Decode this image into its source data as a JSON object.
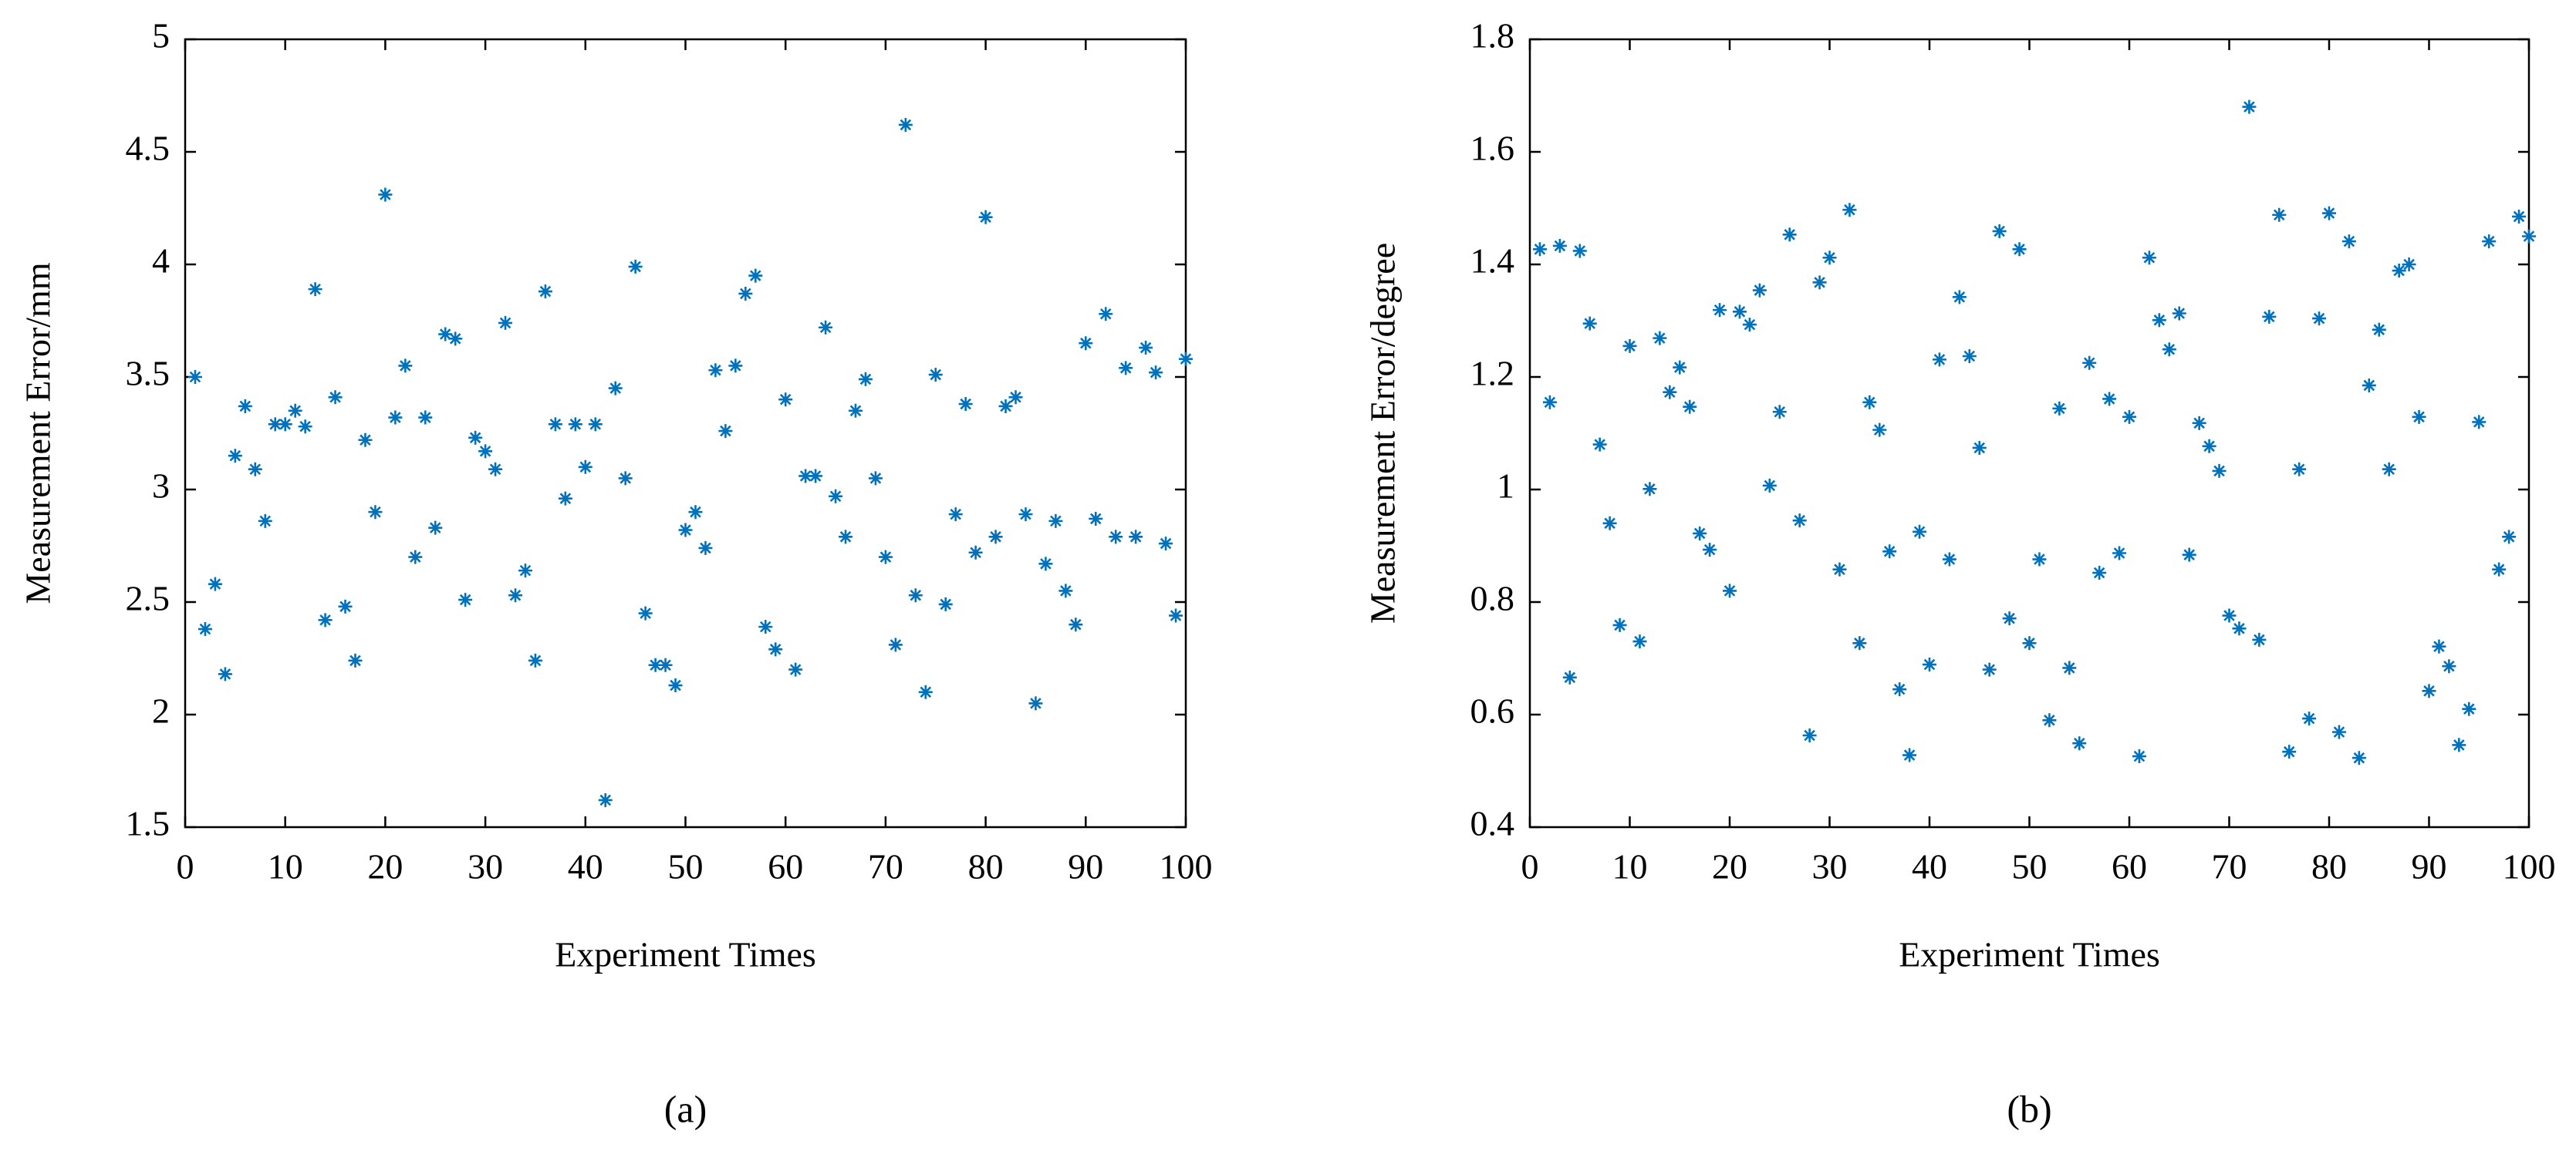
{
  "chart_data": [
    {
      "type": "scatter",
      "caption": "(a)",
      "x_label": "Experiment Times",
      "y_label": "Measurement Error/mm",
      "color": "#0072bd",
      "xlim": [
        0,
        100
      ],
      "xticks": [
        0,
        10,
        20,
        30,
        40,
        50,
        60,
        70,
        80,
        90,
        100
      ],
      "ylim": [
        1.5,
        5
      ],
      "yticks": [
        1.5,
        2,
        2.5,
        3,
        3.5,
        4,
        4.5,
        5
      ],
      "x": [
        1,
        2,
        3,
        4,
        5,
        6,
        7,
        8,
        9,
        10,
        11,
        12,
        13,
        14,
        15,
        16,
        17,
        18,
        19,
        20,
        21,
        22,
        23,
        24,
        25,
        26,
        27,
        28,
        29,
        30,
        31,
        32,
        33,
        34,
        35,
        36,
        37,
        38,
        39,
        40,
        41,
        42,
        43,
        44,
        45,
        46,
        47,
        48,
        49,
        50,
        51,
        52,
        53,
        54,
        55,
        56,
        57,
        58,
        59,
        60,
        61,
        62,
        63,
        64,
        65,
        66,
        67,
        68,
        69,
        70,
        71,
        72,
        73,
        74,
        75,
        76,
        77,
        78,
        79,
        80,
        81,
        82,
        83,
        84,
        85,
        86,
        87,
        88,
        89,
        90,
        91,
        92,
        93,
        94,
        95,
        96,
        97,
        98,
        99,
        100
      ],
      "values": [
        3.5,
        2.38,
        2.58,
        2.18,
        3.15,
        3.37,
        3.09,
        2.86,
        3.29,
        3.29,
        3.35,
        3.28,
        3.89,
        2.42,
        3.41,
        2.48,
        2.24,
        3.22,
        2.9,
        4.31,
        3.32,
        3.55,
        2.7,
        3.32,
        2.83,
        3.69,
        3.67,
        2.51,
        3.23,
        3.17,
        3.09,
        3.74,
        2.53,
        2.64,
        2.24,
        3.88,
        3.29,
        2.96,
        3.29,
        3.1,
        3.29,
        1.62,
        3.45,
        3.05,
        3.99,
        2.45,
        2.22,
        2.22,
        2.13,
        2.82,
        2.9,
        2.74,
        3.53,
        3.26,
        3.55,
        3.87,
        3.95,
        2.39,
        2.29,
        3.4,
        2.2,
        3.06,
        3.06,
        3.72,
        2.97,
        2.79,
        3.35,
        3.49,
        3.05,
        2.7,
        2.31,
        4.62,
        2.53,
        2.1,
        3.51,
        2.49,
        2.89,
        3.38,
        2.72,
        4.21,
        2.79,
        3.37,
        3.41,
        2.89,
        2.05,
        2.67,
        2.86,
        2.55,
        2.4,
        3.65,
        2.87,
        3.78,
        2.79,
        3.54,
        2.79,
        3.63,
        3.52,
        2.76,
        2.44,
        3.58
      ]
    },
    {
      "type": "scatter",
      "caption": "(b)",
      "x_label": "Experiment Times",
      "y_label": "Measurement Error/degree",
      "color": "#0072bd",
      "xlim": [
        0,
        100
      ],
      "xticks": [
        0,
        10,
        20,
        30,
        40,
        50,
        60,
        70,
        80,
        90,
        100
      ],
      "ylim": [
        0.4,
        1.8
      ],
      "yticks": [
        0.4,
        0.6,
        0.8,
        1,
        1.2,
        1.4,
        1.6,
        1.8
      ],
      "x": [
        1,
        2,
        3,
        4,
        5,
        6,
        7,
        8,
        9,
        10,
        11,
        12,
        13,
        14,
        15,
        16,
        17,
        18,
        19,
        20,
        21,
        22,
        23,
        24,
        25,
        26,
        27,
        28,
        29,
        30,
        31,
        32,
        33,
        34,
        35,
        36,
        37,
        38,
        39,
        40,
        41,
        42,
        43,
        44,
        45,
        46,
        47,
        48,
        49,
        50,
        51,
        52,
        53,
        54,
        55,
        56,
        57,
        58,
        59,
        60,
        61,
        62,
        63,
        64,
        65,
        66,
        67,
        68,
        69,
        70,
        71,
        72,
        73,
        74,
        75,
        76,
        77,
        78,
        79,
        80,
        81,
        82,
        83,
        84,
        85,
        86,
        87,
        88,
        89,
        90,
        91,
        92,
        93,
        94,
        95,
        96,
        97,
        98,
        99,
        100
      ],
      "values": [
        1.427,
        1.155,
        1.433,
        0.666,
        1.424,
        1.295,
        1.08,
        0.94,
        0.759,
        1.255,
        0.73,
        1.001,
        1.269,
        1.173,
        1.217,
        1.147,
        0.922,
        0.893,
        1.319,
        0.82,
        1.316,
        1.293,
        1.354,
        1.007,
        1.138,
        1.453,
        0.945,
        0.563,
        1.368,
        1.412,
        0.858,
        1.497,
        0.727,
        1.155,
        1.106,
        0.89,
        0.645,
        0.528,
        0.925,
        0.689,
        1.231,
        0.876,
        1.342,
        1.237,
        1.074,
        0.68,
        1.459,
        0.771,
        1.427,
        0.727,
        0.876,
        0.59,
        1.144,
        0.683,
        0.549,
        1.225,
        0.852,
        1.161,
        0.887,
        1.129,
        0.526,
        1.412,
        1.301,
        1.249,
        1.313,
        0.884,
        1.118,
        1.077,
        1.033,
        0.776,
        0.753,
        1.68,
        0.733,
        1.307,
        1.488,
        0.534,
        1.036,
        0.593,
        1.304,
        1.491,
        0.569,
        1.441,
        0.523,
        1.185,
        1.284,
        1.036,
        1.389,
        1.4,
        1.129,
        0.642,
        0.721,
        0.686,
        0.546,
        0.61,
        1.12,
        1.441,
        0.858,
        0.916,
        1.485,
        1.45
      ]
    }
  ]
}
